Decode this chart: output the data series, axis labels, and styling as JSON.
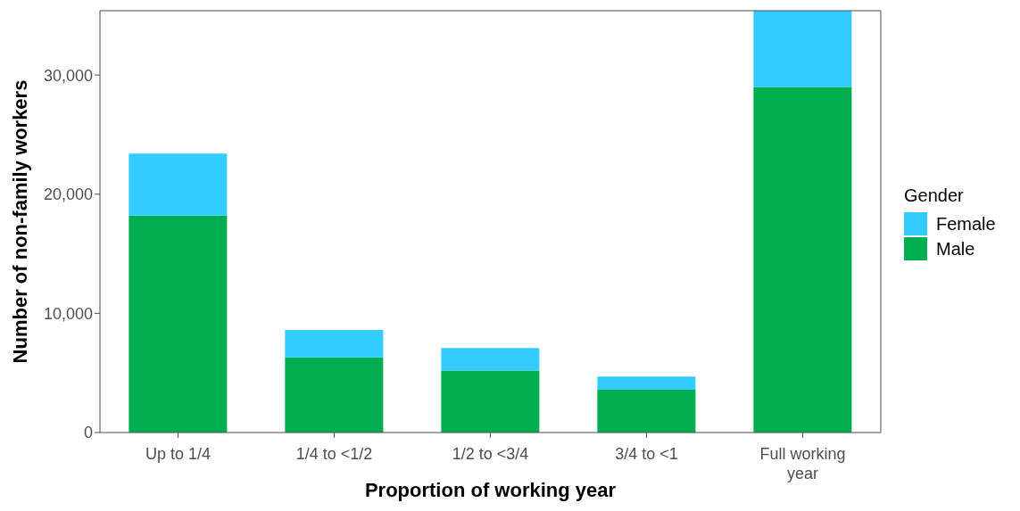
{
  "chart_data": {
    "type": "bar",
    "xlabel": "Proportion of working year",
    "ylabel": "Number of non-family workers",
    "legend_title": "Gender",
    "categories": [
      "Up to 1/4",
      "1/4 to <1/2",
      "1/2 to <3/4",
      "3/4 to <1",
      "Full working year"
    ],
    "series": [
      {
        "name": "Male",
        "color": "#00ad4f",
        "values": [
          18200,
          6300,
          5200,
          3600,
          29000
        ]
      },
      {
        "name": "Female",
        "color": "#33ccff",
        "values": [
          5200,
          2300,
          1900,
          1100,
          6400
        ]
      }
    ],
    "stacked": true,
    "ylim": [
      0,
      35400
    ],
    "yticks": [
      {
        "value": 0,
        "label": "0"
      },
      {
        "value": 10000,
        "label": "10,000"
      },
      {
        "value": 20000,
        "label": "20,000"
      },
      {
        "value": 30000,
        "label": "30,000"
      }
    ],
    "grid": false,
    "legend": "right"
  }
}
